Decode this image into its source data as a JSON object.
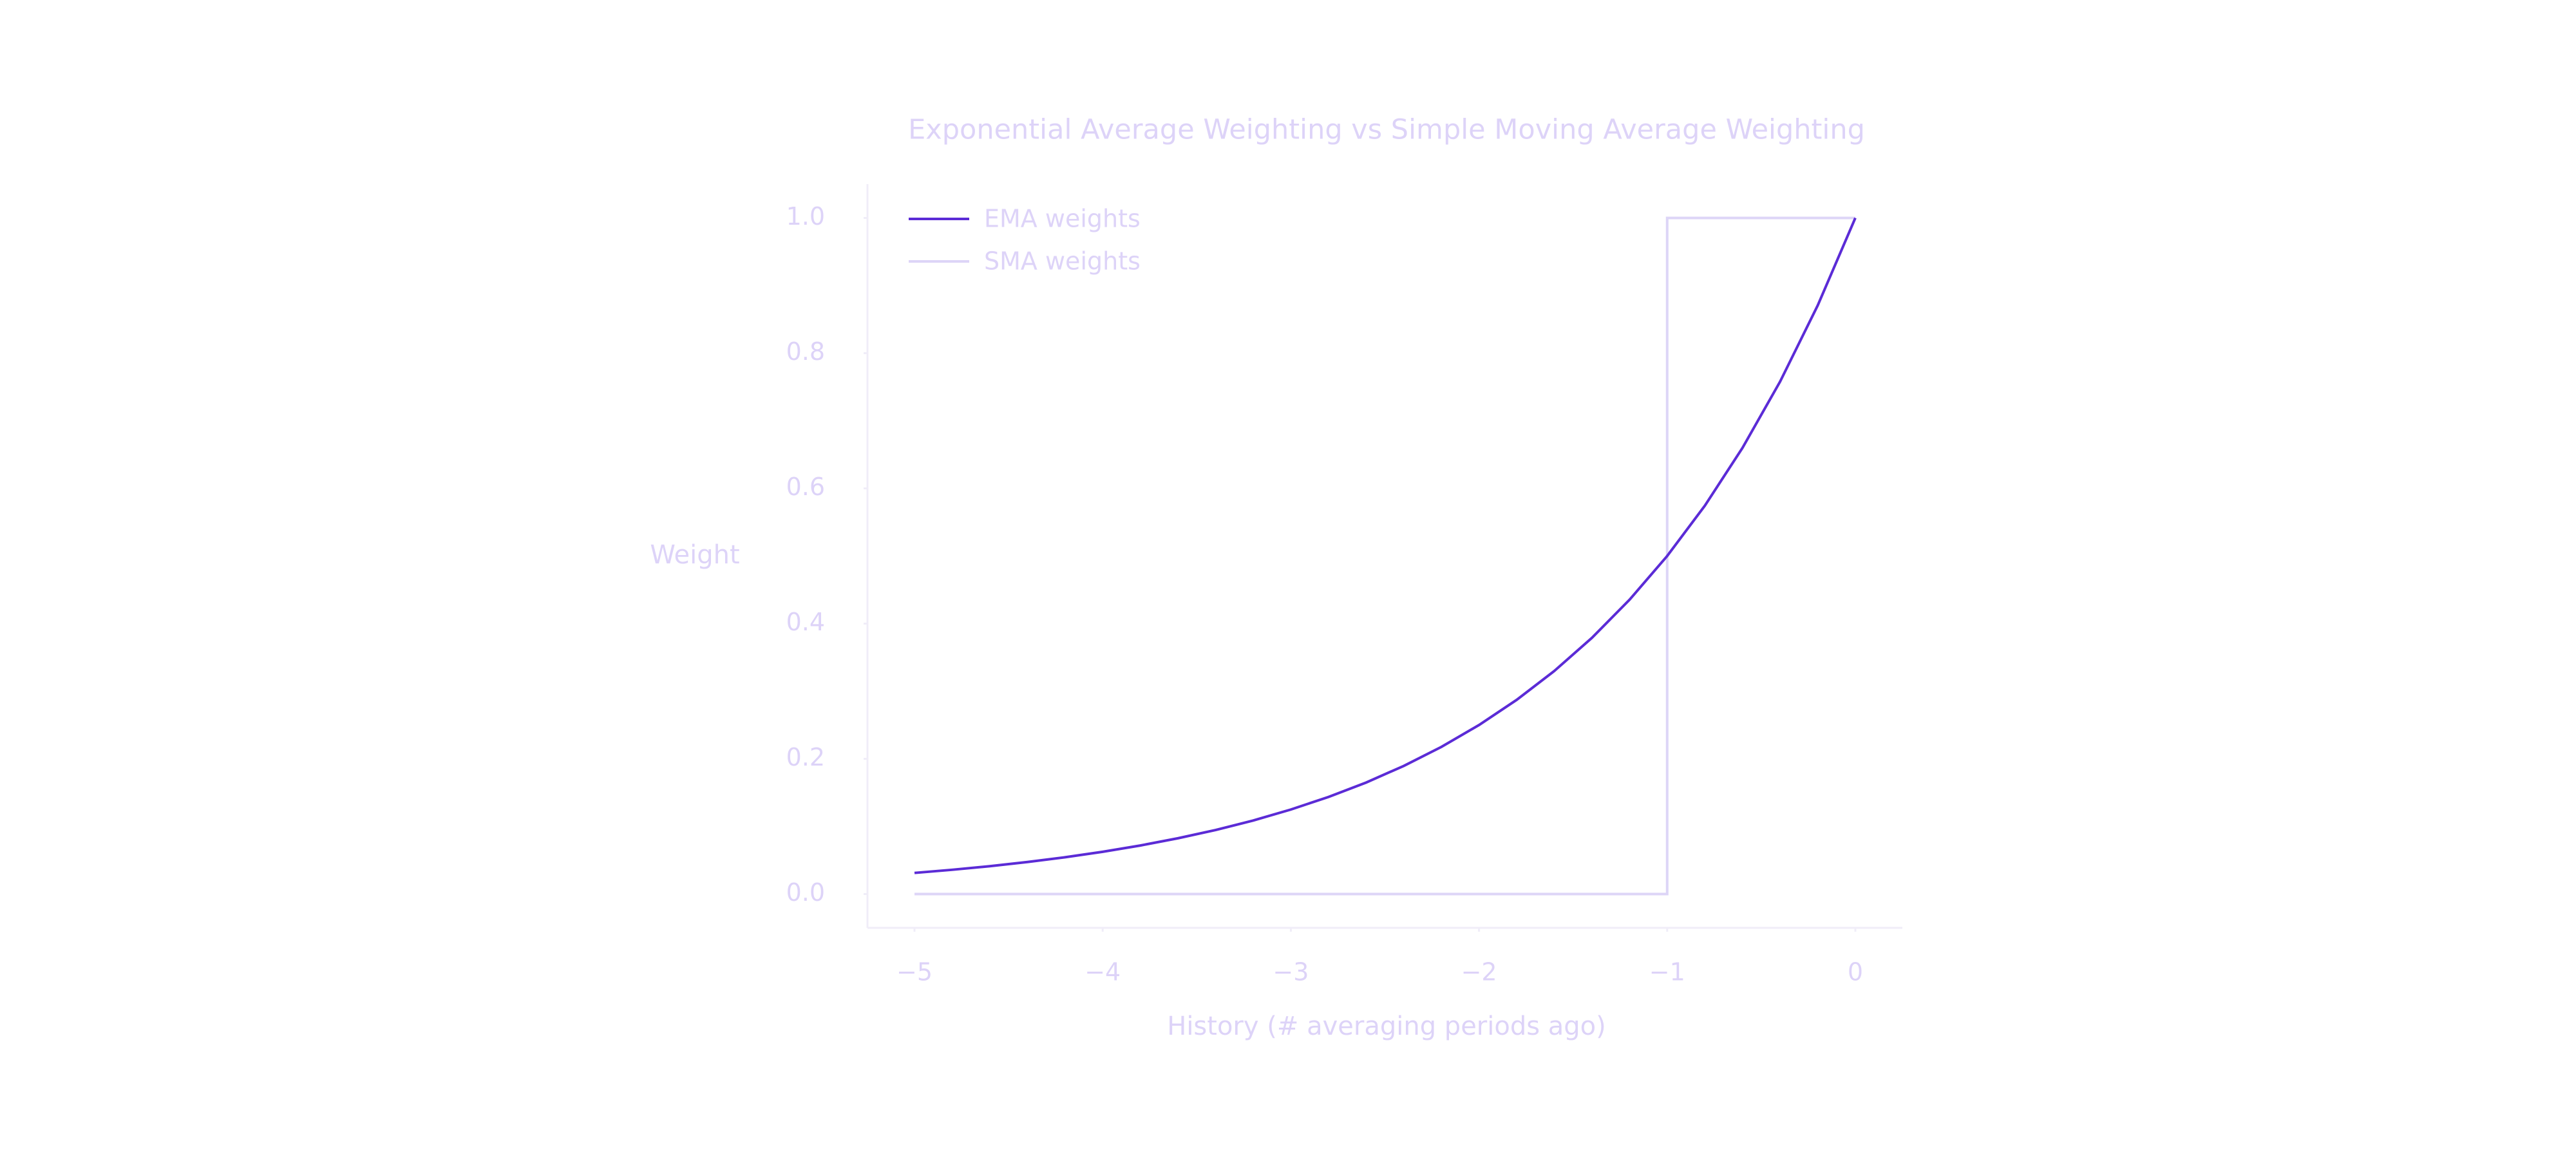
{
  "chart_data": {
    "type": "line",
    "title": "Exponential Average Weighting vs Simple Moving Average Weighting",
    "xlabel": "History (# averaging periods ago)",
    "ylabel": "Weight",
    "series": [
      {
        "name": "EMA weights",
        "color": "#5b2bd6",
        "x": [
          -5,
          -4.8,
          -4.6,
          -4.4,
          -4.2,
          -4,
          -3.8,
          -3.6,
          -3.4,
          -3.2,
          -3,
          -2.8,
          -2.6,
          -2.4,
          -2.2,
          -2,
          -1.8,
          -1.6,
          -1.4,
          -1.2,
          -1,
          -0.8,
          -0.6,
          -0.4,
          -0.2,
          0
        ],
        "values": [
          0.03125,
          0.0359,
          0.0412,
          0.0474,
          0.0544,
          0.0625,
          0.0718,
          0.0825,
          0.0947,
          0.1088,
          0.125,
          0.1436,
          0.1649,
          0.1895,
          0.2176,
          0.25,
          0.2872,
          0.3299,
          0.3789,
          0.4353,
          0.5,
          0.5743,
          0.6598,
          0.7579,
          0.8706,
          1
        ]
      },
      {
        "name": "SMA weights",
        "color": "#ddd5f7",
        "x": [
          -5,
          -1,
          -1,
          0
        ],
        "values": [
          0,
          0,
          1,
          1
        ]
      }
    ],
    "xlim": [
      -5.25,
      0.25
    ],
    "ylim": [
      -0.05,
      1.05
    ],
    "xticks": [
      {
        "value": -5,
        "label": "−5"
      },
      {
        "value": -4,
        "label": "−4"
      },
      {
        "value": -3,
        "label": "−3"
      },
      {
        "value": -2,
        "label": "−2"
      },
      {
        "value": -1,
        "label": "−1"
      },
      0
    ],
    "yticks": [
      {
        "value": 0,
        "label": "0.0"
      },
      0.2,
      0.4,
      0.6,
      0.8,
      {
        "value": 1,
        "label": "1.0"
      }
    ],
    "grid": false,
    "legend": "upper-left"
  }
}
